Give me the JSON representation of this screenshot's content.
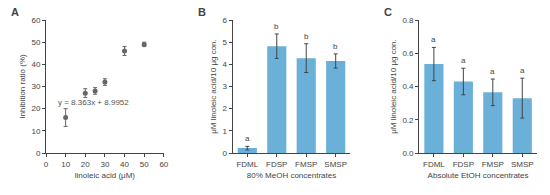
{
  "chart_data": [
    {
      "type": "scatter",
      "title": "A",
      "x": [
        10,
        20,
        25,
        30,
        40,
        50
      ],
      "values": [
        16,
        27,
        28,
        32,
        46,
        49
      ],
      "errors": [
        4,
        2,
        1.5,
        1.5,
        2,
        1
      ],
      "color": "#666666",
      "marker": "circle",
      "xlabel": "linoleic acid (μM)",
      "ylabel": "Inhibition ratio (%)",
      "xlim": [
        0,
        60
      ],
      "ylim": [
        0,
        60
      ],
      "xticks": [
        0,
        10,
        20,
        30,
        40,
        50,
        60
      ],
      "yticks": [
        0,
        10,
        20,
        30,
        40,
        50,
        60
      ],
      "grid": false,
      "annotations": [
        {
          "text": "y = 8.363x + 8.9952",
          "x": 5,
          "y": 20,
          "color": "#555555"
        }
      ]
    },
    {
      "type": "bar",
      "title": "B",
      "categories": [
        "FDML",
        "FDSP",
        "FMSP",
        "SMSP"
      ],
      "values": [
        0.22,
        4.82,
        4.28,
        4.15
      ],
      "errors": [
        0.08,
        0.55,
        0.65,
        0.32
      ],
      "color": "#6ab0d8",
      "xlabel": "80% MeOH concentrates",
      "ylabel": "μM linoleic acid/10 μg con.",
      "ylim": [
        0,
        6
      ],
      "yticks": [
        0,
        1,
        2,
        3,
        4,
        5,
        6
      ],
      "grid": false,
      "annotations": [
        {
          "text": "a",
          "category": "FDML"
        },
        {
          "text": "b",
          "category": "FDSP"
        },
        {
          "text": "b",
          "category": "FMSP"
        },
        {
          "text": "b",
          "category": "SMSP"
        }
      ]
    },
    {
      "type": "bar",
      "title": "C",
      "categories": [
        "FDML",
        "FDSP",
        "FMSP",
        "SMSP"
      ],
      "values": [
        0.535,
        0.43,
        0.365,
        0.33
      ],
      "errors": [
        0.1,
        0.08,
        0.08,
        0.12
      ],
      "color": "#6ab0d8",
      "xlabel": "Absolute EtOH concentrates",
      "ylabel": "μM linoleic acid/10 μg con.",
      "ylim": [
        0,
        0.8
      ],
      "yticks": [
        {
          "value": 0,
          "label": "0.0"
        },
        0.2,
        0.4,
        0.6,
        0.8
      ],
      "grid": false,
      "annotations": [
        {
          "text": "a",
          "category": "FDML"
        },
        {
          "text": "a",
          "category": "FDSP"
        },
        {
          "text": "a",
          "category": "FMSP"
        },
        {
          "text": "a",
          "category": "SMSP"
        }
      ]
    }
  ]
}
